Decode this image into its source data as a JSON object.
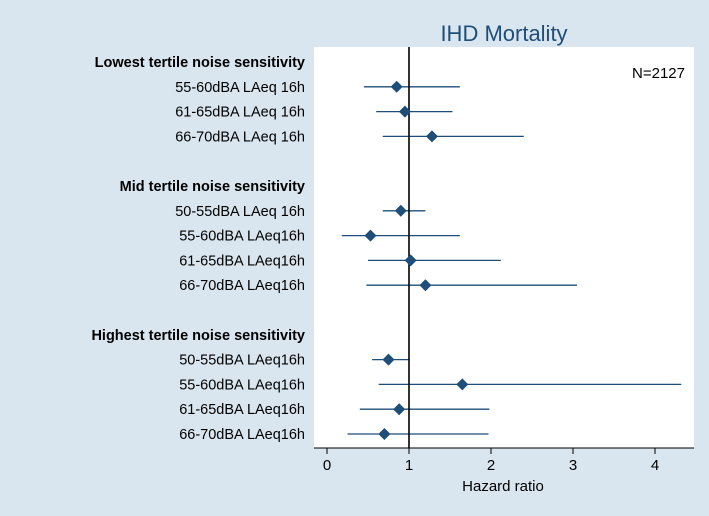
{
  "chart_data": {
    "type": "forest",
    "title": "IHD Mortality",
    "xlabel": "Hazard ratio",
    "xlim": [
      -0.1,
      4.4
    ],
    "xticks": [
      0,
      1,
      2,
      3,
      4
    ],
    "reference_line": 1,
    "annotation": "N=2127",
    "groups": [
      {
        "label": "Lowest tertile noise sensitivity",
        "rows": [
          {
            "label": "55-60dBA LAeq 16h",
            "hr": 0.85,
            "ci_low": 0.45,
            "ci_high": 1.62
          },
          {
            "label": "61-65dBA LAeq 16h",
            "hr": 0.95,
            "ci_low": 0.6,
            "ci_high": 1.53
          },
          {
            "label": "66-70dBA LAeq 16h",
            "hr": 1.28,
            "ci_low": 0.68,
            "ci_high": 2.4
          }
        ]
      },
      {
        "label": "Mid tertile noise sensitivity",
        "rows": [
          {
            "label": "50-55dBA LAeq 16h",
            "hr": 0.9,
            "ci_low": 0.68,
            "ci_high": 1.2
          },
          {
            "label": "55-60dBA LAeq16h",
            "hr": 0.53,
            "ci_low": 0.18,
            "ci_high": 1.62
          },
          {
            "label": "61-65dBA LAeq16h",
            "hr": 1.02,
            "ci_low": 0.5,
            "ci_high": 2.12
          },
          {
            "label": "66-70dBA LAeq16h",
            "hr": 1.2,
            "ci_low": 0.48,
            "ci_high": 3.05
          }
        ]
      },
      {
        "label": "Highest tertile noise sensitivity",
        "rows": [
          {
            "label": "50-55dBA LAeq16h",
            "hr": 0.75,
            "ci_low": 0.55,
            "ci_high": 1.0
          },
          {
            "label": "55-60dBA LAeq16h",
            "hr": 1.65,
            "ci_low": 0.63,
            "ci_high": 4.32
          },
          {
            "label": "61-65dBA LAeq16h",
            "hr": 0.88,
            "ci_low": 0.4,
            "ci_high": 1.98
          },
          {
            "label": "66-70dBA LAeq16h",
            "hr": 0.7,
            "ci_low": 0.25,
            "ci_high": 1.97
          }
        ]
      }
    ],
    "colors": {
      "marker": "#1f4e79",
      "ci_line": "#1f4e79",
      "ref_line": "#000000",
      "title": "#1f4e79"
    }
  }
}
